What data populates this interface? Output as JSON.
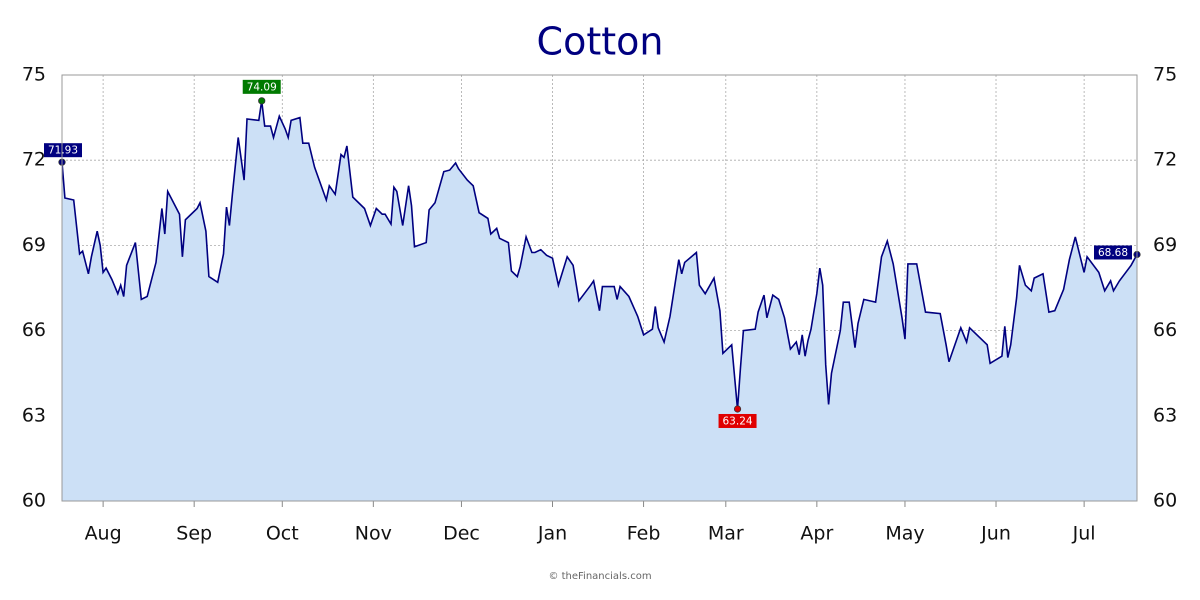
{
  "chart_data": {
    "type": "area",
    "title": "Cotton",
    "credit": "© theFinancials.com",
    "x": [
      0,
      1,
      4,
      6,
      7,
      9,
      10,
      12,
      13,
      14,
      15,
      17,
      19,
      20,
      21,
      22,
      25,
      27,
      29,
      32,
      34,
      35,
      36,
      40,
      41,
      42,
      46,
      47,
      49,
      50,
      53,
      55,
      56,
      57,
      58,
      60,
      62,
      63,
      67,
      68,
      69,
      71,
      72,
      74,
      76,
      77,
      78,
      81,
      82,
      83,
      84,
      86,
      90,
      91,
      93,
      95,
      96,
      97,
      99,
      103,
      105,
      107,
      109,
      110,
      112,
      113,
      114,
      116,
      118,
      119,
      120,
      124,
      125,
      127,
      130,
      132,
      134,
      135,
      138,
      140,
      142,
      145,
      146,
      148,
      149,
      152,
      153,
      155,
      156,
      158,
      160,
      161,
      163,
      165,
      167,
      169,
      172,
      174,
      176,
      180,
      181,
      183,
      184,
      188,
      189,
      190,
      193,
      196,
      198,
      201,
      202,
      203,
      205,
      207,
      210,
      211,
      212,
      216,
      217,
      219,
      222,
      224,
      225,
      228,
      230,
      231,
      232,
      236,
      237,
      239,
      240,
      242,
      244,
      246,
      248,
      250,
      251,
      252,
      253,
      254,
      255,
      257,
      258,
      259,
      260,
      261,
      262,
      265,
      266,
      268,
      270,
      271,
      273,
      277,
      279,
      281,
      283,
      286,
      287,
      288,
      291,
      294,
      299,
      301,
      302,
      306,
      308,
      309,
      315,
      316,
      320,
      321,
      322,
      323,
      325,
      326,
      328,
      330,
      331,
      334,
      336,
      338,
      341,
      343,
      345,
      348,
      349,
      353,
      355,
      357,
      358,
      360,
      364,
      366
    ],
    "values": [
      71.93,
      70.67,
      70.6,
      68.7,
      68.8,
      68.0,
      68.6,
      69.5,
      69.0,
      68.05,
      68.2,
      67.8,
      67.3,
      67.6,
      67.2,
      68.3,
      69.1,
      67.1,
      67.2,
      68.4,
      70.3,
      69.4,
      70.9,
      70.1,
      68.6,
      69.9,
      70.3,
      70.5,
      69.5,
      67.9,
      67.7,
      68.7,
      70.35,
      69.7,
      70.8,
      72.8,
      71.3,
      73.45,
      73.4,
      74.09,
      73.2,
      73.2,
      72.8,
      73.55,
      73.1,
      72.8,
      73.4,
      73.5,
      72.6,
      72.6,
      72.6,
      71.75,
      70.6,
      71.1,
      70.8,
      72.2,
      72.1,
      72.5,
      70.7,
      70.3,
      69.7,
      70.3,
      70.1,
      70.1,
      69.75,
      71.05,
      70.9,
      69.7,
      71.1,
      70.4,
      68.95,
      69.1,
      70.25,
      70.5,
      71.6,
      71.65,
      71.9,
      71.7,
      71.3,
      71.1,
      70.15,
      69.95,
      69.4,
      69.6,
      69.25,
      69.1,
      68.1,
      67.9,
      68.25,
      69.3,
      68.75,
      68.75,
      68.85,
      68.65,
      68.55,
      67.6,
      68.6,
      68.3,
      67.05,
      67.6,
      67.75,
      66.7,
      67.55,
      67.55,
      67.1,
      67.55,
      67.2,
      66.5,
      65.85,
      66.05,
      66.85,
      66.1,
      65.6,
      66.5,
      68.5,
      68.0,
      68.4,
      68.75,
      67.6,
      67.3,
      67.85,
      66.7,
      65.2,
      65.5,
      63.24,
      64.7,
      66.0,
      66.05,
      66.65,
      67.25,
      66.45,
      67.25,
      67.1,
      66.45,
      65.35,
      65.6,
      65.15,
      65.85,
      65.1,
      65.65,
      66.05,
      67.3,
      68.2,
      67.6,
      64.8,
      63.4,
      64.5,
      66.0,
      67.0,
      67.0,
      65.4,
      66.25,
      67.1,
      67.0,
      68.6,
      69.15,
      68.35,
      66.45,
      65.7,
      68.35,
      68.35,
      66.65,
      66.6,
      65.5,
      64.9,
      66.1,
      65.6,
      66.1,
      65.5,
      64.85,
      65.1,
      66.15,
      65.05,
      65.5,
      67.15,
      68.3,
      67.6,
      67.4,
      67.85,
      68.0,
      66.65,
      66.7,
      67.45,
      68.5,
      69.3,
      68.05,
      68.6,
      68.05,
      67.4,
      67.75,
      67.4,
      67.75,
      68.3,
      68.68
    ],
    "xlim": [
      0,
      366
    ],
    "xticks": [
      {
        "value": 14,
        "label": "Aug"
      },
      {
        "value": 45,
        "label": "Sep"
      },
      {
        "value": 75,
        "label": "Oct"
      },
      {
        "value": 106,
        "label": "Nov"
      },
      {
        "value": 136,
        "label": "Dec"
      },
      {
        "value": 167,
        "label": "Jan"
      },
      {
        "value": 198,
        "label": "Feb"
      },
      {
        "value": 226,
        "label": "Mar"
      },
      {
        "value": 257,
        "label": "Apr"
      },
      {
        "value": 287,
        "label": "May"
      },
      {
        "value": 318,
        "label": "Jun"
      },
      {
        "value": 348,
        "label": "Jul"
      }
    ],
    "ylim": [
      60,
      75
    ],
    "yticks": [
      60,
      63,
      66,
      69,
      72,
      75
    ],
    "grid": true,
    "line_color": "#000080",
    "fill_color": "#cce0f6",
    "marker_colors": {
      "first": "#000080",
      "max": "#007a00",
      "min": "#e00000",
      "last": "#000080"
    }
  }
}
